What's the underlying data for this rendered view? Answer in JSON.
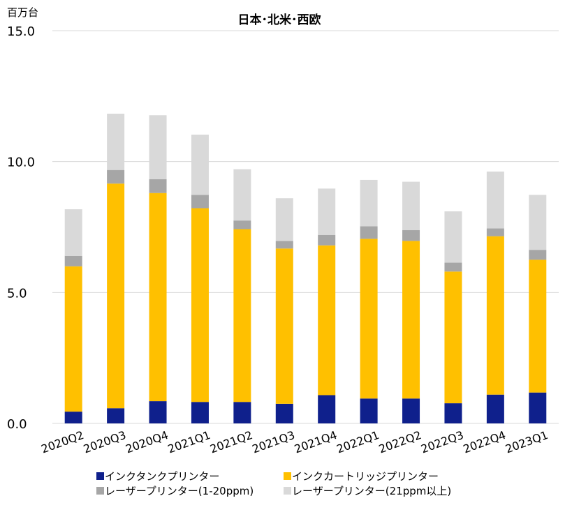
{
  "chart_data": {
    "type": "bar",
    "stacked": true,
    "title": "日本･北米･西欧",
    "unit_label": "百万台",
    "categories": [
      "2020Q2",
      "2020Q3",
      "2020Q4",
      "2021Q1",
      "2021Q2",
      "2021Q3",
      "2021Q4",
      "2022Q1",
      "2022Q2",
      "2022Q3",
      "2022Q4",
      "2023Q1"
    ],
    "ylim": [
      0,
      15
    ],
    "yticks": [
      "0.0",
      "5.0",
      "10.0",
      "15.0"
    ],
    "grid": true,
    "legend_position": "bottom",
    "series": [
      {
        "name": "インクタンクプリンター",
        "color": "#0f208c",
        "values": [
          0.45,
          0.58,
          0.85,
          0.82,
          0.82,
          0.75,
          1.08,
          0.95,
          0.95,
          0.77,
          1.1,
          1.18
        ]
      },
      {
        "name": "インクカートリッジプリンター",
        "color": "#ffc000",
        "values": [
          5.55,
          8.58,
          7.95,
          7.4,
          6.6,
          5.93,
          5.72,
          6.1,
          6.02,
          5.03,
          6.05,
          5.07
        ]
      },
      {
        "name": "レーザープリンター(1-20ppm)",
        "color": "#a6a6a6",
        "values": [
          0.4,
          0.52,
          0.53,
          0.51,
          0.33,
          0.29,
          0.4,
          0.48,
          0.41,
          0.34,
          0.3,
          0.38
        ]
      },
      {
        "name": "レーザープリンター(21ppm以上)",
        "color": "#d9d9d9",
        "values": [
          1.78,
          2.15,
          2.44,
          2.3,
          1.96,
          1.63,
          1.77,
          1.77,
          1.85,
          1.96,
          2.17,
          2.1
        ]
      }
    ]
  }
}
